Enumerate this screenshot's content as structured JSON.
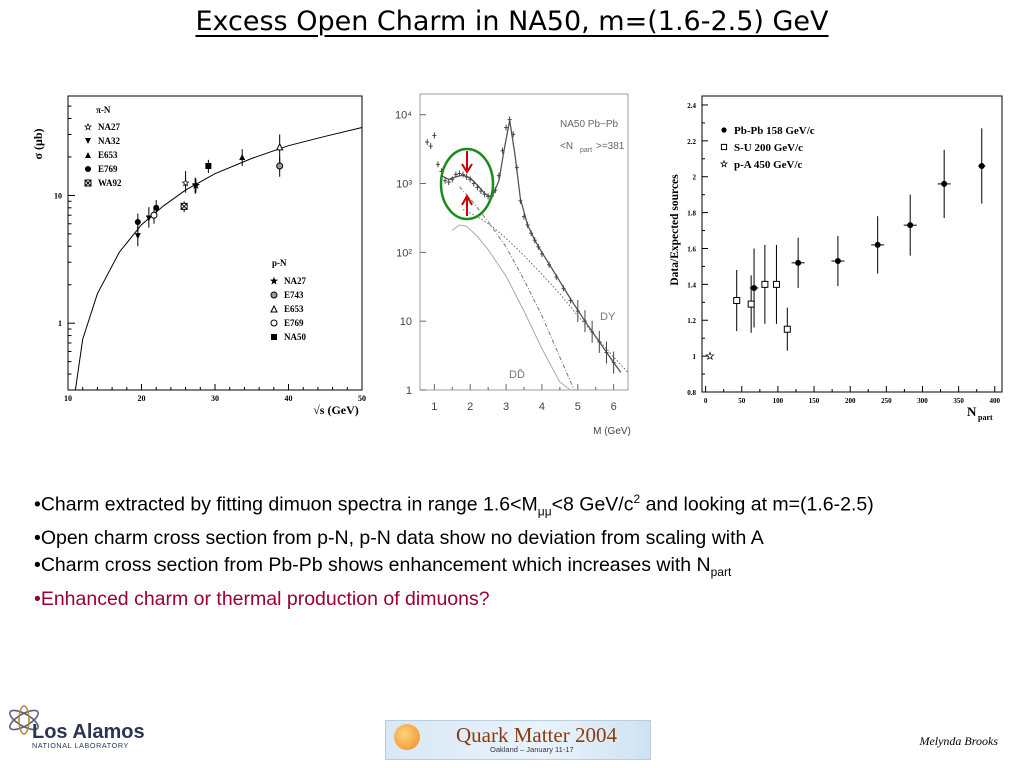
{
  "title": "Excess Open Charm in NA50, m=(1.6-2.5) GeV",
  "bullets": {
    "b1_pre": "•Charm extracted by fitting dimuon spectra in range 1.6<M",
    "b1_sub": "μμ",
    "b1_mid": "<8 GeV/c",
    "b1_sup": "2",
    "b1_post": " and looking at m=(1.6-2.5)",
    "b2": "•Open charm cross section from p-N, p-N data show no deviation from scaling with A",
    "b3_pre": "•Charm cross section from Pb-Pb shows enhancement which increases with N",
    "b3_sub": "part",
    "b4": "•Enhanced charm or thermal production of dimuons?"
  },
  "footer": {
    "logo_text": "Los Alamos",
    "logo_sub": "NATIONAL LABORATORY",
    "conf_title": "Quark Matter 2004",
    "conf_sub": "Oakland – January 11-17",
    "author": "Melynda Brooks"
  },
  "colors": {
    "accent_red": "#990033",
    "circle_green": "#1e8a1e",
    "arrow_red": "#cc0000"
  },
  "chart_data": [
    {
      "type": "scatter",
      "name": "cross-section-vs-sqrt-s",
      "ylabel": "σ (μb)",
      "xlabel": "√s (GeV)",
      "x_ticks": [
        "10",
        "20",
        "30",
        "40",
        "50"
      ],
      "y_ticks": [
        "1",
        "10"
      ],
      "xlim": [
        10,
        50
      ],
      "ylim": [
        0.3,
        60
      ],
      "yscale": "log",
      "legend_piN_title": "π-N",
      "legend_pN_title": "p-N",
      "series": [
        {
          "name": "NA27",
          "group": "π-N",
          "marker": "star-open",
          "points": [
            [
              26,
              12.5
            ]
          ],
          "err": [
            [
              2,
              3
            ]
          ]
        },
        {
          "name": "NA32",
          "group": "π-N",
          "marker": "triangle-down",
          "points": [
            [
              19.5,
              4.8
            ],
            [
              21,
              6.6
            ],
            [
              27.3,
              11.8
            ]
          ],
          "err": [
            [
              0.8,
              1
            ],
            [
              1,
              1.5
            ],
            [
              1.5,
              2
            ]
          ]
        },
        {
          "name": "E653",
          "group": "π-N",
          "marker": "triangle-up",
          "points": [
            [
              33.7,
              20
            ]
          ],
          "err": [
            [
              3,
              3
            ]
          ]
        },
        {
          "name": "E769",
          "group": "π-N",
          "marker": "circle-filled",
          "points": [
            [
              19.5,
              6.2
            ],
            [
              22,
              8
            ]
          ],
          "err": [
            [
              1,
              1
            ],
            [
              1.2,
              1.2
            ]
          ]
        },
        {
          "name": "WA92",
          "group": "π-N",
          "marker": "square-crossed",
          "points": [
            [
              25.8,
              8.2
            ]
          ],
          "err": [
            [
              0.8,
              0.8
            ]
          ]
        },
        {
          "name": "NA27",
          "group": "p-N",
          "marker": "star-filled",
          "points": [
            [
              27.4,
              12
            ]
          ],
          "err": [
            [
              1.5,
              1.5
            ]
          ]
        },
        {
          "name": "E743",
          "group": "p-N",
          "marker": "circle-hatched",
          "points": [
            [
              38.8,
              17
            ]
          ],
          "err": [
            [
              3,
              3
            ]
          ]
        },
        {
          "name": "E653",
          "group": "p-N",
          "marker": "triangle-open",
          "points": [
            [
              38.8,
              24
            ]
          ],
          "err": [
            [
              6,
              6
            ]
          ]
        },
        {
          "name": "E769",
          "group": "p-N",
          "marker": "circle-open",
          "points": [
            [
              21.7,
              7
            ]
          ],
          "err": [
            [
              1,
              1
            ]
          ]
        },
        {
          "name": "NA50",
          "group": "p-N",
          "marker": "square-filled",
          "points": [
            [
              29.1,
              17
            ]
          ],
          "err": [
            [
              2,
              2
            ]
          ]
        }
      ],
      "curve": [
        [
          11,
          0.3
        ],
        [
          12,
          0.75
        ],
        [
          14,
          1.7
        ],
        [
          17,
          3.6
        ],
        [
          20,
          5.9
        ],
        [
          23,
          8.3
        ],
        [
          26,
          11
        ],
        [
          30,
          14.8
        ],
        [
          35,
          19.5
        ],
        [
          40,
          24.5
        ],
        [
          45,
          29
        ],
        [
          50,
          34
        ]
      ]
    },
    {
      "type": "line",
      "name": "dimuon-mass-spectrum",
      "xlabel": "M (GeV)",
      "x_ticks": [
        "1",
        "2",
        "3",
        "4",
        "5",
        "6"
      ],
      "y_ticks": [
        "1",
        "10",
        "10²",
        "10³",
        "10⁴"
      ],
      "xlim": [
        0.6,
        6.4
      ],
      "ylim": [
        1,
        20000
      ],
      "yscale": "log",
      "label_system": "NA50  Pb−Pb",
      "label_npart": "<N",
      "label_npart_sub": "part",
      "label_npart_val": ">=381",
      "label_dy": "DY",
      "label_dd": "DD̄",
      "data_points": [
        [
          0.8,
          4000
        ],
        [
          0.9,
          3500
        ],
        [
          1.0,
          5000
        ],
        [
          1.1,
          1900
        ],
        [
          1.2,
          1500
        ],
        [
          1.3,
          1100
        ],
        [
          1.4,
          1050
        ],
        [
          1.5,
          1150
        ],
        [
          1.6,
          1350
        ],
        [
          1.7,
          1400
        ],
        [
          1.8,
          1350
        ],
        [
          1.9,
          1250
        ],
        [
          2.0,
          1150
        ],
        [
          2.1,
          1000
        ],
        [
          2.2,
          880
        ],
        [
          2.3,
          780
        ],
        [
          2.4,
          700
        ],
        [
          2.5,
          650
        ],
        [
          2.6,
          660
        ],
        [
          2.7,
          800
        ],
        [
          2.8,
          1300
        ],
        [
          2.9,
          3000
        ],
        [
          3.0,
          6500
        ],
        [
          3.1,
          8500
        ],
        [
          3.2,
          5200
        ],
        [
          3.3,
          1700
        ],
        [
          3.4,
          560
        ],
        [
          3.5,
          330
        ],
        [
          3.6,
          250
        ],
        [
          3.7,
          190
        ],
        [
          3.8,
          150
        ],
        [
          3.9,
          120
        ],
        [
          4.0,
          95
        ],
        [
          4.2,
          66
        ],
        [
          4.4,
          44
        ],
        [
          4.6,
          30
        ],
        [
          4.8,
          20
        ],
        [
          5.0,
          14
        ],
        [
          5.2,
          10
        ],
        [
          5.4,
          7
        ],
        [
          5.6,
          5
        ],
        [
          5.8,
          3.5
        ],
        [
          6.0,
          2.5
        ]
      ],
      "fit_total": [
        [
          1.2,
          1300
        ],
        [
          1.4,
          1150
        ],
        [
          1.6,
          1250
        ],
        [
          1.8,
          1330
        ],
        [
          2.0,
          1200
        ],
        [
          2.2,
          950
        ],
        [
          2.4,
          720
        ],
        [
          2.6,
          620
        ],
        [
          2.8,
          1100
        ],
        [
          2.95,
          3200
        ],
        [
          3.1,
          8300
        ],
        [
          3.25,
          2600
        ],
        [
          3.4,
          600
        ],
        [
          3.6,
          250
        ],
        [
          3.8,
          150
        ],
        [
          4.0,
          100
        ],
        [
          4.4,
          46
        ],
        [
          4.8,
          21
        ],
        [
          5.2,
          10
        ],
        [
          5.6,
          5
        ],
        [
          6.0,
          2.5
        ],
        [
          6.2,
          1.8
        ]
      ],
      "curve_dd": [
        [
          1.5,
          210
        ],
        [
          1.7,
          250
        ],
        [
          1.9,
          240
        ],
        [
          2.2,
          170
        ],
        [
          2.5,
          110
        ],
        [
          3.0,
          45
        ],
        [
          3.5,
          14
        ],
        [
          4.0,
          4
        ],
        [
          4.5,
          1.3
        ],
        [
          4.8,
          1
        ]
      ],
      "curve_dotted": [
        [
          1.8,
          420
        ],
        [
          2.2,
          330
        ],
        [
          2.6,
          240
        ],
        [
          3.0,
          160
        ],
        [
          3.5,
          90
        ],
        [
          4.0,
          48
        ],
        [
          4.5,
          25
        ],
        [
          5.0,
          12
        ],
        [
          5.5,
          6
        ],
        [
          6.0,
          3
        ],
        [
          6.4,
          1.8
        ]
      ],
      "curve_dashdot": [
        [
          1.7,
          900
        ],
        [
          2.0,
          600
        ],
        [
          2.5,
          280
        ],
        [
          3.0,
          120
        ],
        [
          3.5,
          40
        ],
        [
          4.0,
          12
        ],
        [
          4.5,
          3
        ],
        [
          4.9,
          1
        ]
      ]
    },
    {
      "type": "scatter",
      "name": "data-over-expected-vs-npart",
      "ylabel": "Data/Expected sources",
      "xlabel": "N",
      "xlabel_sub": "part",
      "x_ticks": [
        "0",
        "50",
        "100",
        "150",
        "200",
        "250",
        "300",
        "350",
        "400"
      ],
      "y_ticks": [
        "0.8",
        "1",
        "1.2",
        "1.4",
        "1.6",
        "1.8",
        "2",
        "2.2",
        "2.4"
      ],
      "xlim": [
        -5,
        410
      ],
      "ylim": [
        0.8,
        2.45
      ],
      "series": [
        {
          "name": "Pb-Pb 158 GeV/c",
          "marker": "circle-filled",
          "points": [
            [
              67,
              1.38
            ],
            [
              128,
              1.52
            ],
            [
              183,
              1.53
            ],
            [
              238,
              1.62
            ],
            [
              283,
              1.73
            ],
            [
              330,
              1.96
            ],
            [
              382,
              2.06
            ]
          ],
          "yerr": [
            0.22,
            0.14,
            0.14,
            0.16,
            0.17,
            0.19,
            0.21
          ],
          "xerr": [
            6,
            9,
            9,
            9,
            9,
            9,
            5
          ]
        },
        {
          "name": "S-U 200 GeV/c",
          "marker": "square-open",
          "points": [
            [
              43,
              1.31
            ],
            [
              63,
              1.29
            ],
            [
              82,
              1.4
            ],
            [
              98,
              1.4
            ],
            [
              113,
              1.15
            ]
          ],
          "yerr": [
            0.17,
            0.16,
            0.22,
            0.22,
            0.12
          ],
          "xerr": [
            4,
            4,
            4,
            4,
            4
          ]
        },
        {
          "name": "p-A 450 GeV/c",
          "marker": "star-open",
          "points": [
            [
              6,
              1.0
            ]
          ],
          "yerr": [
            0
          ],
          "xerr": [
            0
          ]
        }
      ]
    }
  ]
}
